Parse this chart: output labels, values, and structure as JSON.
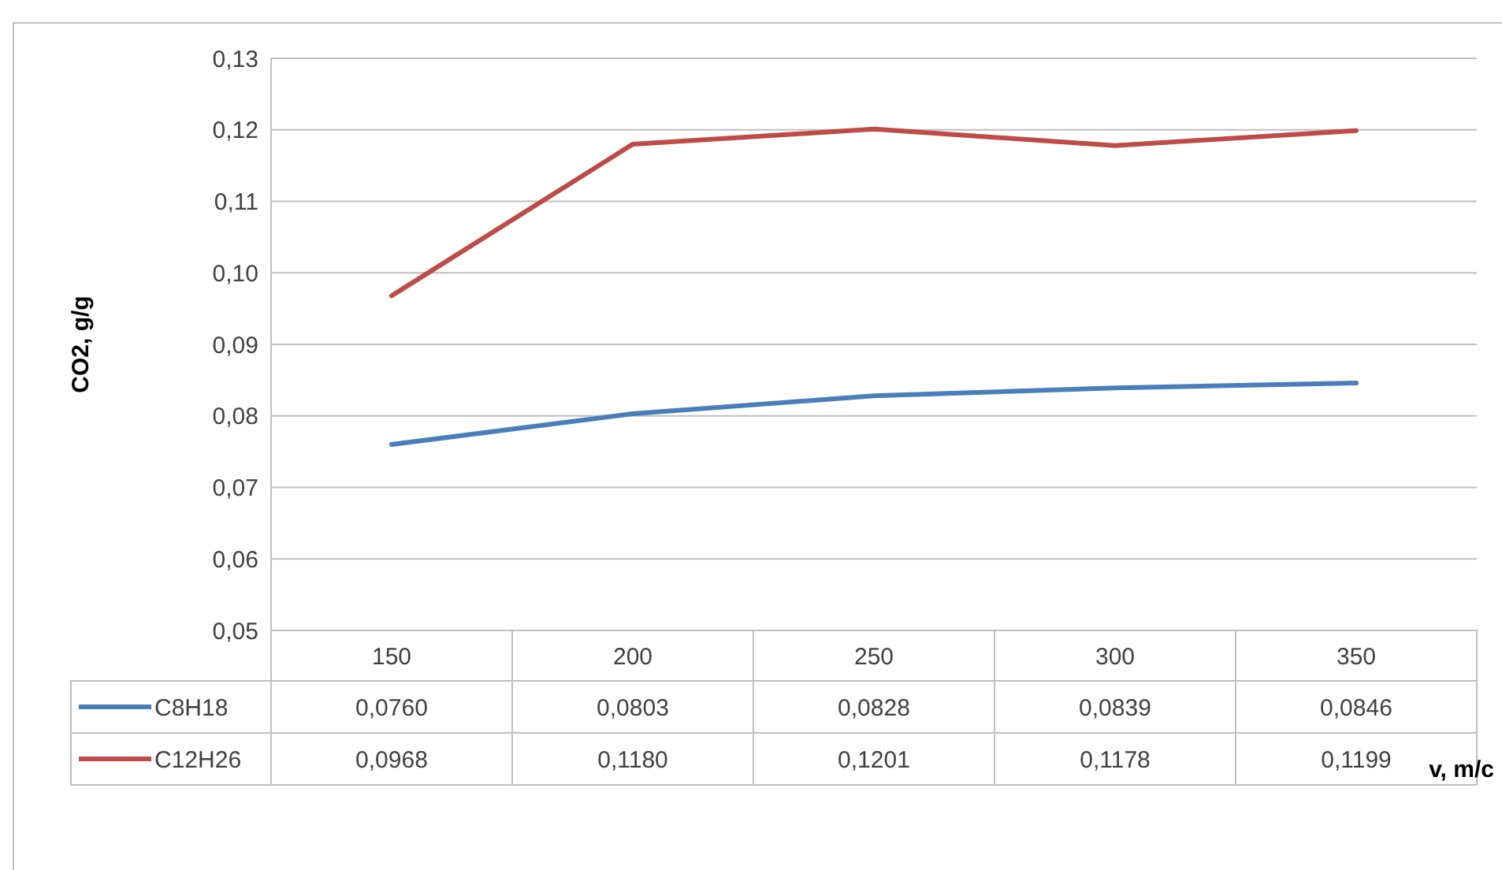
{
  "chart_data": {
    "type": "line",
    "xlabel": "v, m/c",
    "ylabel": "CO2, g/g",
    "categories": [
      "150",
      "200",
      "250",
      "300",
      "350"
    ],
    "series": [
      {
        "name": "C8H18",
        "color": "#4a7ebb",
        "values": [
          0.076,
          0.0803,
          0.0828,
          0.0839,
          0.0846
        ],
        "value_labels": [
          "0,0760",
          "0,0803",
          "0,0828",
          "0,0839",
          "0,0846"
        ]
      },
      {
        "name": "C12H26",
        "color": "#be4b48",
        "values": [
          0.0968,
          0.118,
          0.1201,
          0.1178,
          0.1199
        ],
        "value_labels": [
          "0,0968",
          "0,1180",
          "0,1201",
          "0,1178",
          "0,1199"
        ]
      }
    ],
    "ylim": [
      0.05,
      0.13
    ],
    "yticks": [
      {
        "value": 0.05,
        "label": "0,05"
      },
      {
        "value": 0.06,
        "label": "0,06"
      },
      {
        "value": 0.07,
        "label": "0,07"
      },
      {
        "value": 0.08,
        "label": "0,08"
      },
      {
        "value": 0.09,
        "label": "0,09"
      },
      {
        "value": 0.1,
        "label": "0,10"
      },
      {
        "value": 0.11,
        "label": "0,11"
      },
      {
        "value": 0.12,
        "label": "0,12"
      },
      {
        "value": 0.13,
        "label": "0,13"
      }
    ],
    "grid": "y",
    "legend": "bottom",
    "data_labels": true,
    "marker": "none",
    "line_style": "solid"
  }
}
